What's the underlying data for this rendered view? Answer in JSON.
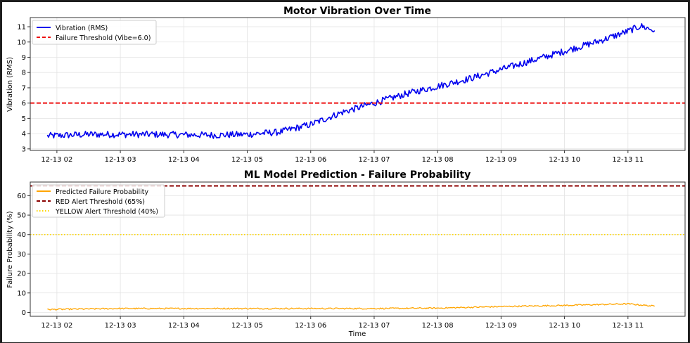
{
  "colors": {
    "vibration": "#0000ee",
    "vib_threshold": "#ee1111",
    "probability": "#ffa500",
    "red_threshold": "#8b0000",
    "yellow_threshold": "#ffd700"
  },
  "chart_data": [
    {
      "type": "line",
      "title": "Motor Vibration Over Time",
      "xlabel": "",
      "ylabel": "Vibration (RMS)",
      "ylim": [
        2.9,
        11.6
      ],
      "yticks": [
        3,
        4,
        5,
        6,
        7,
        8,
        9,
        10,
        11
      ],
      "yticklabels": [
        "3",
        "4",
        "5",
        "6",
        "7",
        "8",
        "9",
        "10",
        "11"
      ],
      "xlim_hours": [
        1.58,
        11.9
      ],
      "xticks_hours": [
        2,
        3,
        4,
        5,
        6,
        7,
        8,
        9,
        10,
        11
      ],
      "xticklabels": [
        "12-13 02",
        "12-13 03",
        "12-13 04",
        "12-13 05",
        "12-13 06",
        "12-13 07",
        "12-13 08",
        "12-13 09",
        "12-13 10",
        "12-13 11"
      ],
      "grid": true,
      "legend_position": "top-left",
      "series": [
        {
          "name": "Vibration (RMS)",
          "style": "solid",
          "x_hours": [
            1.85,
            2.5,
            3.5,
            4.5,
            5.0,
            5.5,
            6.0,
            6.5,
            7.0,
            7.5,
            8.0,
            8.5,
            9.0,
            9.5,
            10.0,
            10.5,
            11.0,
            11.2,
            11.42
          ],
          "values": [
            3.85,
            3.95,
            3.95,
            3.9,
            3.95,
            4.1,
            4.6,
            5.4,
            6.0,
            6.6,
            7.1,
            7.6,
            8.2,
            8.8,
            9.4,
            10.0,
            10.7,
            11.05,
            10.75
          ]
        },
        {
          "name": "Failure Threshold (Vibe=6.0)",
          "style": "dashed",
          "hline": 6.0
        }
      ]
    },
    {
      "type": "line",
      "title": "ML Model Prediction - Failure Probability",
      "xlabel": "Time",
      "ylabel": "Failure Probability (%)",
      "ylim": [
        -2,
        67
      ],
      "yticks": [
        0,
        10,
        20,
        30,
        40,
        50,
        60
      ],
      "yticklabels": [
        "0",
        "10",
        "20",
        "30",
        "40",
        "50",
        "60"
      ],
      "xlim_hours": [
        1.58,
        11.9
      ],
      "xticks_hours": [
        2,
        3,
        4,
        5,
        6,
        7,
        8,
        9,
        10,
        11
      ],
      "xticklabels": [
        "12-13 02",
        "12-13 03",
        "12-13 04",
        "12-13 05",
        "12-13 06",
        "12-13 07",
        "12-13 08",
        "12-13 09",
        "12-13 10",
        "12-13 11"
      ],
      "grid": true,
      "legend_position": "top-left",
      "series": [
        {
          "name": "Predicted Failure Probability",
          "style": "solid",
          "x_hours": [
            1.85,
            3.0,
            4.0,
            5.0,
            6.0,
            7.0,
            8.0,
            8.5,
            9.0,
            9.5,
            10.0,
            10.5,
            11.0,
            11.42
          ],
          "values": [
            1.5,
            2.0,
            2.0,
            2.0,
            2.0,
            2.0,
            2.2,
            2.6,
            3.0,
            3.3,
            3.6,
            4.0,
            4.4,
            3.2
          ]
        },
        {
          "name": "RED Alert Threshold (65%)",
          "style": "dashed",
          "hline": 65
        },
        {
          "name": "YELLOW Alert Threshold (40%)",
          "style": "dotted",
          "hline": 40
        }
      ]
    }
  ]
}
